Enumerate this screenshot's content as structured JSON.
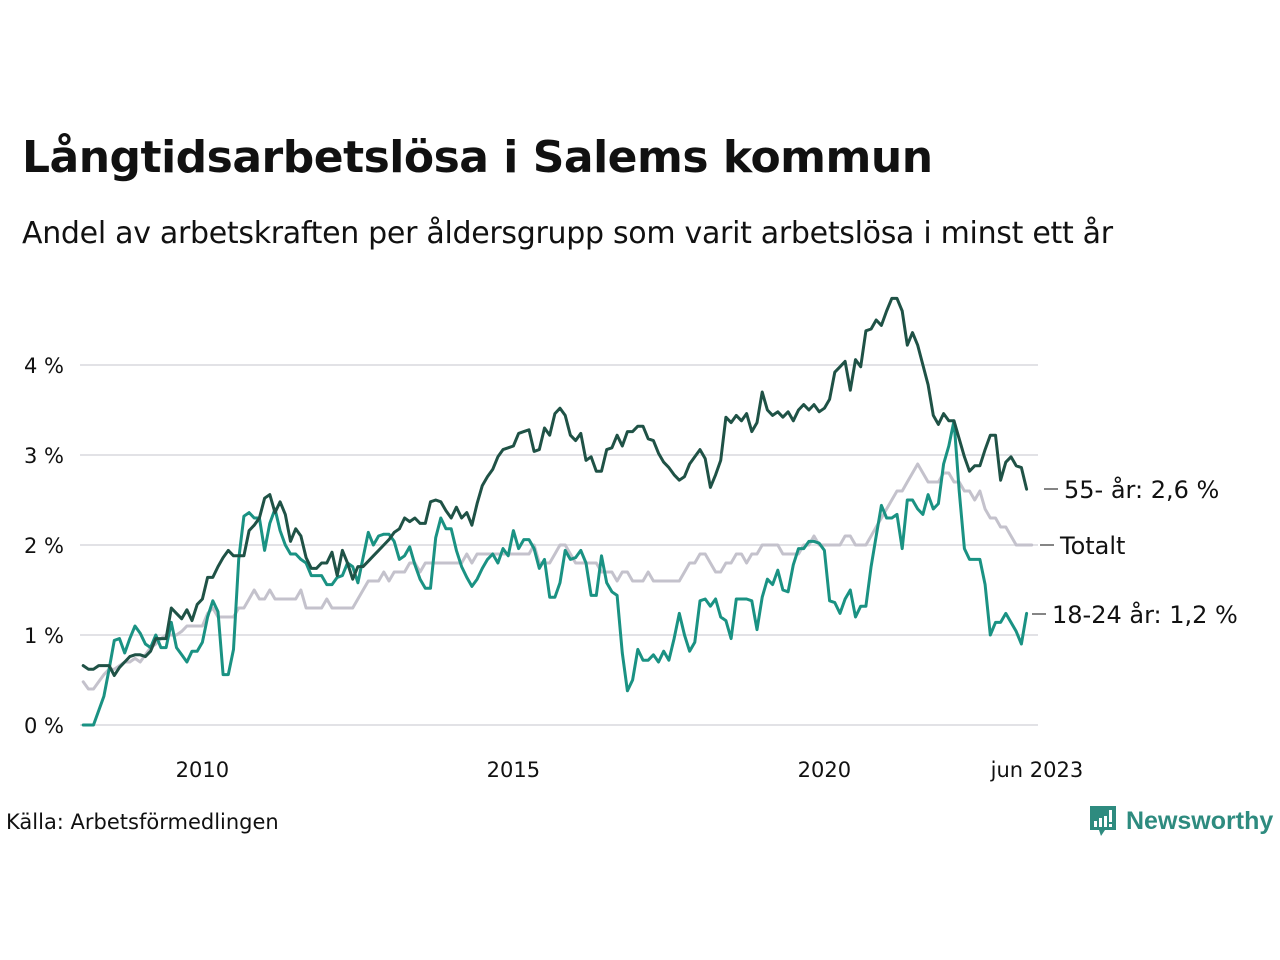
{
  "title": "Långtidsarbetslösa i Salems kommun",
  "subtitle": "Andel av arbetskraften per åldersgrupp som varit arbetslösa i minst ett år",
  "source": "Källa: Arbetsförmedlingen",
  "logo": {
    "text": "Newsworthy",
    "icon": "newsworthy-chart-bubble-icon",
    "color": "#2e8b7f"
  },
  "chart_data": {
    "type": "line",
    "title": "Långtidsarbetslösa i Salems kommun",
    "xlabel": "",
    "ylabel": "",
    "x_start": "2008-02",
    "x_end": "2023-06",
    "frequency": "monthly",
    "ylim": [
      0,
      4.8
    ],
    "yticks": [
      0,
      1,
      2,
      3,
      4
    ],
    "ytick_labels": [
      "0 %",
      "1 %",
      "2 %",
      "3 %",
      "4 %"
    ],
    "xticks": [
      {
        "date": "2010-01",
        "label": "2010"
      },
      {
        "date": "2015-01",
        "label": "2015"
      },
      {
        "date": "2020-01",
        "label": "2020"
      },
      {
        "date": "2023-06",
        "label": "jun 2023"
      }
    ],
    "grid": true,
    "legend": "end-of-line labels (right)",
    "series": [
      {
        "name": "55- år",
        "end_label": "55- år: 2,6 %",
        "color": "#1f5246",
        "values": [
          0.66,
          0.62,
          0.62,
          0.66,
          0.66,
          0.66,
          0.55,
          0.64,
          0.7,
          0.76,
          0.78,
          0.78,
          0.76,
          0.82,
          0.96,
          0.96,
          0.96,
          1.3,
          1.24,
          1.18,
          1.28,
          1.16,
          1.34,
          1.4,
          1.64,
          1.64,
          1.76,
          1.86,
          1.94,
          1.88,
          1.88,
          1.88,
          2.16,
          2.22,
          2.3,
          2.52,
          2.56,
          2.36,
          2.48,
          2.34,
          2.04,
          2.18,
          2.1,
          1.86,
          1.74,
          1.74,
          1.8,
          1.8,
          1.92,
          1.66,
          1.94,
          1.8,
          1.62,
          1.76,
          1.76,
          1.82,
          1.88,
          1.94,
          2.0,
          2.06,
          2.14,
          2.18,
          2.3,
          2.26,
          2.3,
          2.24,
          2.24,
          2.48,
          2.5,
          2.48,
          2.38,
          2.3,
          2.42,
          2.3,
          2.36,
          2.22,
          2.46,
          2.66,
          2.76,
          2.84,
          2.98,
          3.06,
          3.08,
          3.1,
          3.24,
          3.26,
          3.28,
          3.04,
          3.06,
          3.3,
          3.22,
          3.46,
          3.52,
          3.44,
          3.22,
          3.16,
          3.24,
          2.94,
          2.98,
          2.82,
          2.82,
          3.06,
          3.08,
          3.22,
          3.1,
          3.26,
          3.26,
          3.32,
          3.32,
          3.18,
          3.16,
          3.02,
          2.92,
          2.86,
          2.78,
          2.72,
          2.76,
          2.9,
          2.98,
          3.06,
          2.96,
          2.64,
          2.78,
          2.94,
          3.42,
          3.36,
          3.44,
          3.38,
          3.46,
          3.26,
          3.36,
          3.7,
          3.5,
          3.44,
          3.48,
          3.42,
          3.48,
          3.38,
          3.5,
          3.56,
          3.5,
          3.56,
          3.48,
          3.52,
          3.62,
          3.92,
          3.98,
          4.04,
          3.72,
          4.06,
          3.98,
          4.38,
          4.4,
          4.5,
          4.44,
          4.6,
          4.74,
          4.74,
          4.6,
          4.22,
          4.36,
          4.22,
          4.0,
          3.78,
          3.44,
          3.34,
          3.46,
          3.38,
          3.38,
          3.18,
          2.98,
          2.82,
          2.88,
          2.88,
          3.06,
          3.22,
          3.22,
          2.72,
          2.92,
          2.98,
          2.88,
          2.86,
          2.62
        ]
      },
      {
        "name": "Totalt",
        "end_label": "Totalt",
        "color": "#c4c2cc",
        "values": [
          0.48,
          0.4,
          0.4,
          0.48,
          0.56,
          0.62,
          0.62,
          0.66,
          0.7,
          0.7,
          0.74,
          0.7,
          0.78,
          0.86,
          0.9,
          0.96,
          1.0,
          1.0,
          1.0,
          1.04,
          1.1,
          1.1,
          1.1,
          1.1,
          1.24,
          1.3,
          1.2,
          1.2,
          1.2,
          1.2,
          1.3,
          1.3,
          1.4,
          1.5,
          1.4,
          1.4,
          1.5,
          1.4,
          1.4,
          1.4,
          1.4,
          1.4,
          1.5,
          1.3,
          1.3,
          1.3,
          1.3,
          1.4,
          1.3,
          1.3,
          1.3,
          1.3,
          1.3,
          1.4,
          1.5,
          1.6,
          1.6,
          1.6,
          1.7,
          1.6,
          1.7,
          1.7,
          1.7,
          1.8,
          1.8,
          1.7,
          1.8,
          1.8,
          1.8,
          1.8,
          1.8,
          1.8,
          1.8,
          1.8,
          1.9,
          1.8,
          1.9,
          1.9,
          1.9,
          1.9,
          1.9,
          1.9,
          1.9,
          1.9,
          1.9,
          1.9,
          1.9,
          2.0,
          1.8,
          1.8,
          1.8,
          1.9,
          2.0,
          2.0,
          1.9,
          1.8,
          1.8,
          1.8,
          1.8,
          1.8,
          1.7,
          1.7,
          1.7,
          1.6,
          1.7,
          1.7,
          1.6,
          1.6,
          1.6,
          1.7,
          1.6,
          1.6,
          1.6,
          1.6,
          1.6,
          1.6,
          1.7,
          1.8,
          1.8,
          1.9,
          1.9,
          1.8,
          1.7,
          1.7,
          1.8,
          1.8,
          1.9,
          1.9,
          1.8,
          1.9,
          1.9,
          2.0,
          2.0,
          2.0,
          2.0,
          1.9,
          1.9,
          1.9,
          1.9,
          2.0,
          2.0,
          2.1,
          2.0,
          2.0,
          2.0,
          2.0,
          2.0,
          2.1,
          2.1,
          2.0,
          2.0,
          2.0,
          2.1,
          2.2,
          2.3,
          2.4,
          2.5,
          2.6,
          2.6,
          2.7,
          2.8,
          2.9,
          2.8,
          2.7,
          2.7,
          2.7,
          2.8,
          2.8,
          2.7,
          2.7,
          2.6,
          2.6,
          2.5,
          2.6,
          2.4,
          2.3,
          2.3,
          2.2,
          2.2,
          2.1,
          2.0,
          2.0,
          2.0,
          2.0
        ]
      },
      {
        "name": "18-24 år",
        "end_label": "18-24 år: 1,2 %",
        "color": "#1a9283",
        "values": [
          0.0,
          0.0,
          0.0,
          0.16,
          0.32,
          0.62,
          0.94,
          0.96,
          0.8,
          0.96,
          1.1,
          1.02,
          0.9,
          0.86,
          1.0,
          0.86,
          0.86,
          1.14,
          0.86,
          0.78,
          0.7,
          0.82,
          0.82,
          0.92,
          1.2,
          1.38,
          1.26,
          0.56,
          0.56,
          0.84,
          1.84,
          2.32,
          2.36,
          2.3,
          2.3,
          1.94,
          2.24,
          2.4,
          2.16,
          2.0,
          1.9,
          1.9,
          1.84,
          1.8,
          1.66,
          1.66,
          1.66,
          1.56,
          1.56,
          1.64,
          1.66,
          1.8,
          1.76,
          1.58,
          1.86,
          2.14,
          2.0,
          2.1,
          2.12,
          2.12,
          2.04,
          1.84,
          1.88,
          1.98,
          1.78,
          1.62,
          1.52,
          1.52,
          2.08,
          2.3,
          2.18,
          2.18,
          1.94,
          1.76,
          1.64,
          1.54,
          1.62,
          1.74,
          1.84,
          1.9,
          1.8,
          1.96,
          1.88,
          2.16,
          1.96,
          2.06,
          2.06,
          1.96,
          1.74,
          1.84,
          1.42,
          1.42,
          1.58,
          1.94,
          1.84,
          1.86,
          1.94,
          1.8,
          1.44,
          1.44,
          1.88,
          1.58,
          1.48,
          1.44,
          0.8,
          0.38,
          0.5,
          0.84,
          0.72,
          0.72,
          0.78,
          0.7,
          0.82,
          0.72,
          0.96,
          1.24,
          1.0,
          0.82,
          0.92,
          1.38,
          1.4,
          1.32,
          1.4,
          1.2,
          1.16,
          0.96,
          1.4,
          1.4,
          1.4,
          1.38,
          1.06,
          1.42,
          1.62,
          1.56,
          1.72,
          1.5,
          1.48,
          1.78,
          1.96,
          1.96,
          2.04,
          2.04,
          2.02,
          1.94,
          1.38,
          1.36,
          1.24,
          1.4,
          1.5,
          1.2,
          1.32,
          1.32,
          1.76,
          2.1,
          2.44,
          2.3,
          2.3,
          2.34,
          1.96,
          2.5,
          2.5,
          2.4,
          2.34,
          2.56,
          2.4,
          2.46,
          2.9,
          3.1,
          3.38,
          2.6,
          1.96,
          1.84,
          1.84,
          1.84,
          1.56,
          1.0,
          1.14,
          1.14,
          1.24,
          1.14,
          1.04,
          0.9,
          1.24
        ]
      }
    ]
  }
}
